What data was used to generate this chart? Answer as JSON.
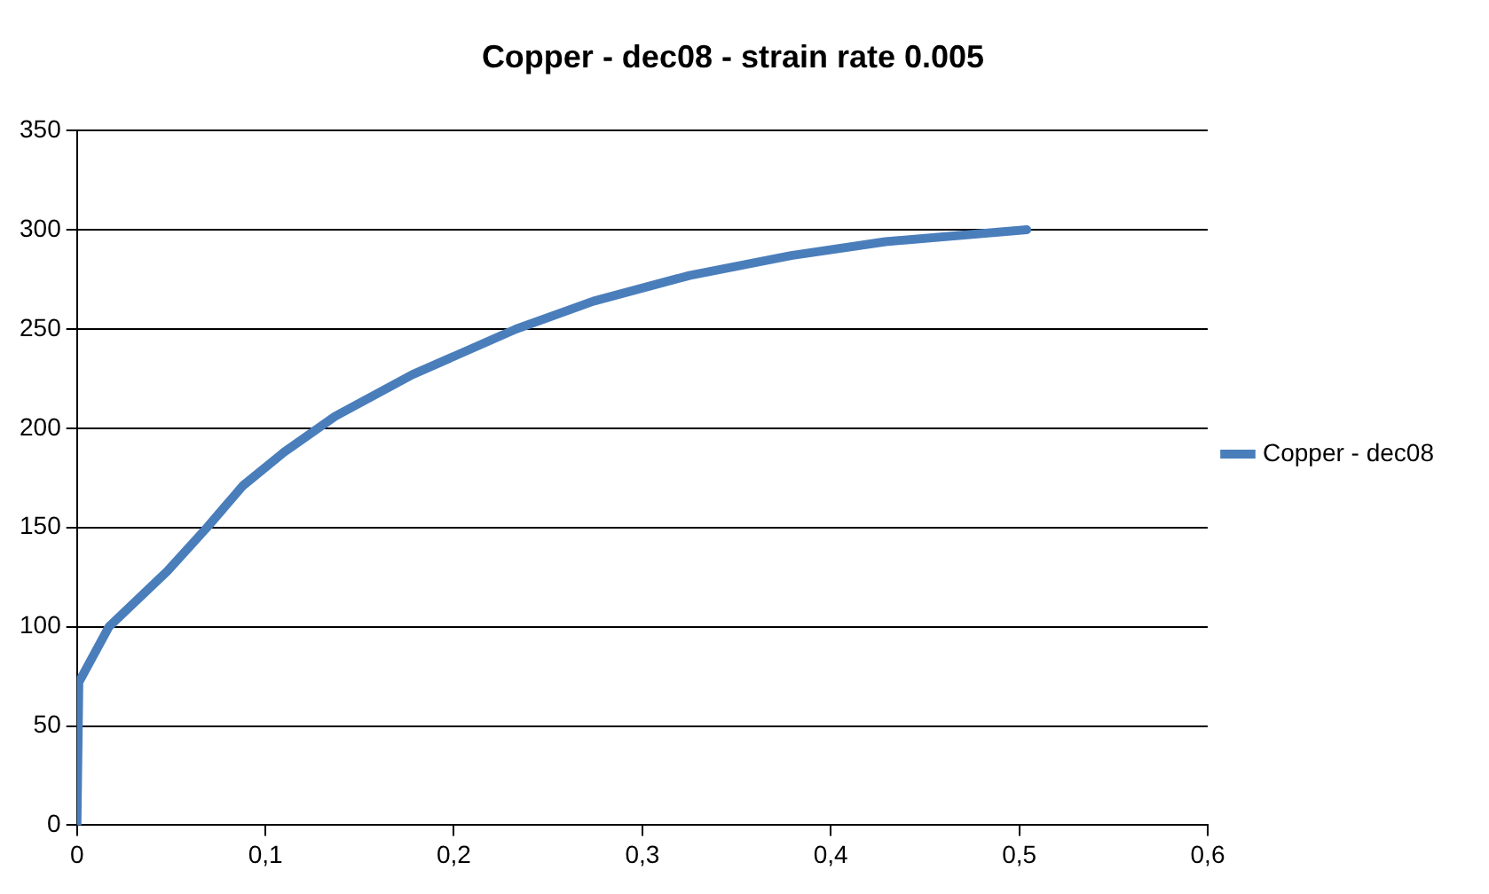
{
  "chart_data": {
    "type": "line",
    "title": "Copper - dec08 - strain rate 0.005",
    "x": [
      0,
      0.001,
      0.017,
      0.048,
      0.069,
      0.088,
      0.11,
      0.137,
      0.178,
      0.233,
      0.274,
      0.325,
      0.379,
      0.429,
      0.504
    ],
    "series": [
      {
        "name": "Copper - dec08",
        "color": "#4a7ebb",
        "values": [
          0,
          72,
          100,
          128,
          150,
          171,
          188,
          206,
          227,
          250,
          264,
          277,
          287,
          294,
          300
        ]
      }
    ],
    "xlim": [
      0,
      0.6
    ],
    "xticks": [
      0,
      {
        "value": 0.1,
        "label": "0,1"
      },
      {
        "value": 0.2,
        "label": "0,2"
      },
      {
        "value": 0.3,
        "label": "0,3"
      },
      {
        "value": 0.4,
        "label": "0,4"
      },
      {
        "value": 0.5,
        "label": "0,5"
      },
      {
        "value": 0.6,
        "label": "0,6"
      }
    ],
    "ylim": [
      0,
      350
    ],
    "yticks": [
      0,
      50,
      100,
      150,
      200,
      250,
      300,
      350
    ],
    "grid": "y",
    "legend": "right",
    "marker": "none",
    "line_style": "solid"
  }
}
